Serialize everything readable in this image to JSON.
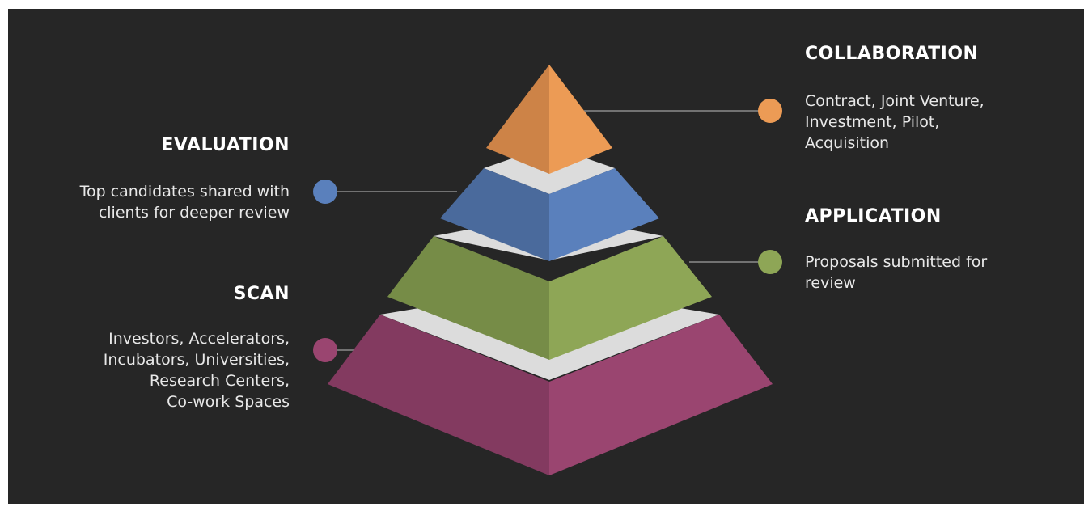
{
  "stages": [
    {
      "id": "collaboration",
      "title": "COLLABORATION",
      "description": [
        "Contract, Joint Venture,",
        "Investment, Pilot,",
        "Acquisition"
      ],
      "color_light": "#EC9B55",
      "color_dark": "#CD8347"
    },
    {
      "id": "evaluation",
      "title": "EVALUATION",
      "description": [
        "Top candidates shared with",
        "clients for deeper review"
      ],
      "color_light": "#5A80BC",
      "color_dark": "#4A6A9C"
    },
    {
      "id": "application",
      "title": "APPLICATION",
      "description": [
        "Proposals submitted for",
        "review"
      ],
      "color_light": "#8EA656",
      "color_dark": "#768C47"
    },
    {
      "id": "scan",
      "title": "SCAN",
      "description": [
        "Investors, Accelerators,",
        "Incubators, Universities,",
        "Research Centers,",
        "Co-work Spaces"
      ],
      "color_light": "#9A4570",
      "color_dark": "#833A60"
    }
  ],
  "colors": {
    "background": "#262626",
    "separator": "#DCDCDC",
    "connector": "#8C8C8C"
  }
}
